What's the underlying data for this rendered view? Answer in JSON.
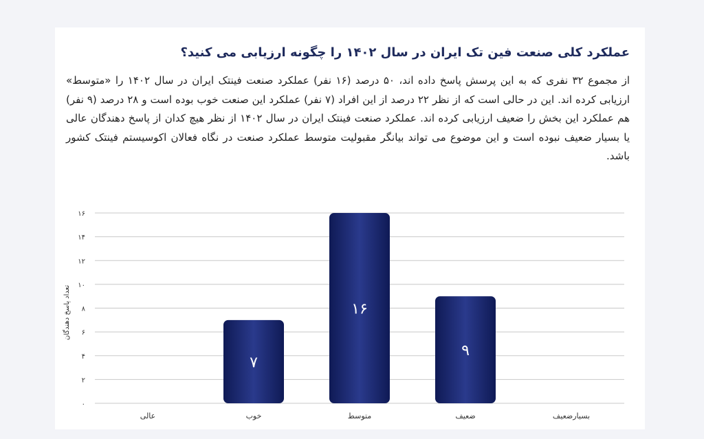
{
  "colors": {
    "bar": "#1f2e7a",
    "title": "#1e2a5c",
    "grid": "#c8c8c8"
  },
  "chart_data": {
    "type": "bar",
    "title": "عملکرد کلی صنعت فین تک ایران در سال ۱۴۰۲ را چگونه ارزیابی می کنید؟",
    "description": "از مجموع ۳۲ نفری که به این پرسش پاسخ داده اند، ۵۰ درصد (۱۶ نفر) عملکرد صنعت فینتک ایران در سال ۱۴۰۲ را «متوسط» ارزیابی کرده اند. این در حالی است که از نظر ۲۲ درصد از این افراد (۷ نفر) عملکرد این صنعت خوب بوده است و ۲۸ درصد (۹ نفر) هم عملکرد این بخش را ضعیف ارزیابی کرده اند. عملکرد صنعت فینتک ایران در سال ۱۴۰۲ از نظر هیچ کدان از پاسخ دهندگان عالی یا بسیار ضعیف نبوده است و این موضوع می تواند بیانگر مقبولیت متوسط عملکرد صنعت در نگاه فعالان اکوسیستم فینتک کشور باشد.",
    "categories": [
      "عالی",
      "خوب",
      "متوسط",
      "ضعیف",
      "بسیارضعیف"
    ],
    "values": [
      0,
      7,
      16,
      9,
      0
    ],
    "data_labels": [
      "",
      "۷",
      "۱۶",
      "۹",
      ""
    ],
    "ylabel": "تعداد پاسخ دهندگان",
    "ylim": [
      0,
      16
    ],
    "yticks": [
      0,
      2,
      4,
      6,
      8,
      10,
      12,
      14,
      16
    ],
    "ytick_labels": [
      "۰",
      "۲",
      "۴",
      "۶",
      "۸",
      "۱۰",
      "۱۲",
      "۱۴",
      "۱۶"
    ],
    "grid": true
  }
}
